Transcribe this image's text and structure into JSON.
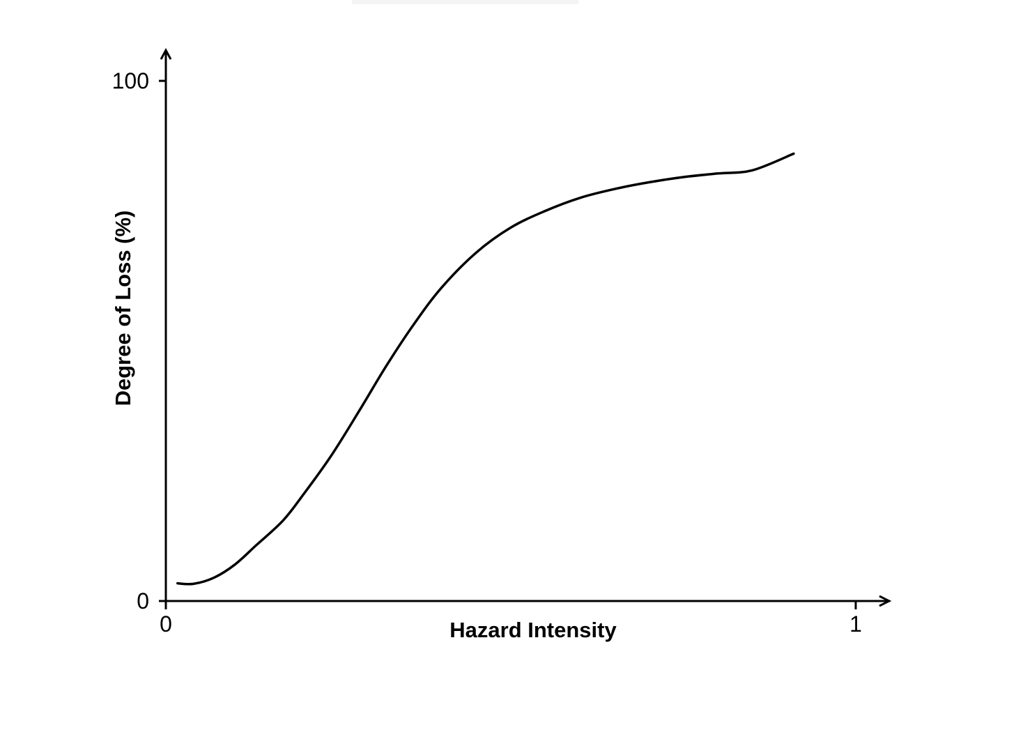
{
  "chart_data": {
    "type": "line",
    "title": "",
    "xlabel": "Hazard Intensity",
    "ylabel": "Degree of Loss (%)",
    "xlim": [
      0,
      1
    ],
    "ylim": [
      0,
      100
    ],
    "x_ticks": [
      {
        "value": 0,
        "label": "0"
      },
      {
        "value": 1,
        "label": "1"
      }
    ],
    "y_ticks": [
      {
        "value": 0,
        "label": "0"
      },
      {
        "value": 100,
        "label": "100"
      }
    ],
    "grid": false,
    "legend": "none",
    "series": [
      {
        "color": "#000000",
        "x": [
          0.017,
          0.04,
          0.07,
          0.1,
          0.13,
          0.17,
          0.2,
          0.24,
          0.28,
          0.32,
          0.36,
          0.4,
          0.45,
          0.5,
          0.55,
          0.6,
          0.65,
          0.7,
          0.75,
          0.8,
          0.85,
          0.91
        ],
        "y": [
          3.4,
          3.3,
          4.5,
          7.0,
          10.6,
          15.5,
          20.6,
          28.0,
          36.5,
          45.3,
          53.3,
          60.3,
          67.0,
          71.8,
          75.0,
          77.5,
          79.2,
          80.5,
          81.5,
          82.2,
          82.8,
          86.0
        ]
      }
    ]
  }
}
